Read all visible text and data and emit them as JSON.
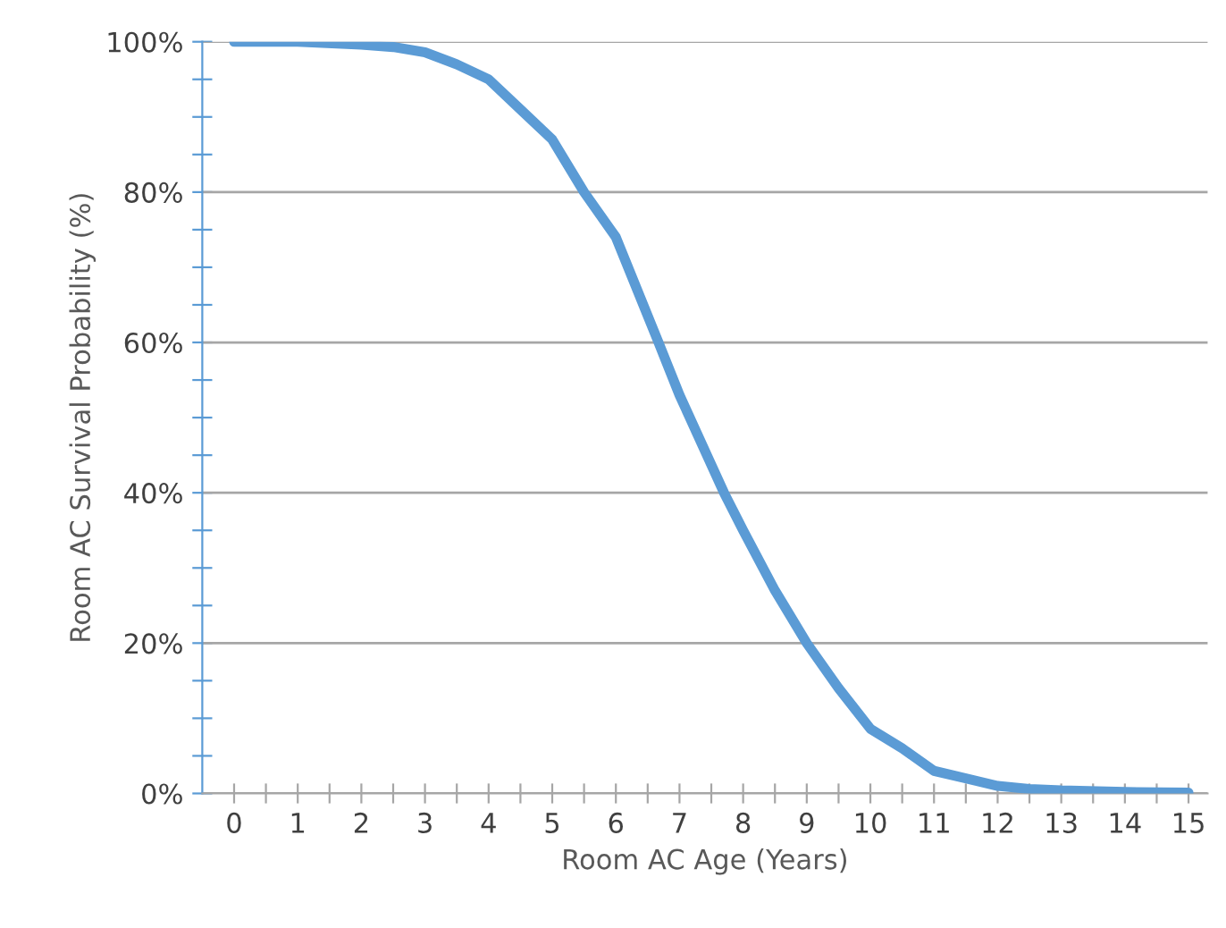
{
  "chart_data": {
    "type": "line",
    "xlabel": "Room AC Age (Years)",
    "ylabel": "Room AC Survival Probability (%)",
    "series": [
      {
        "color": "#5b9bd5",
        "x": [
          0,
          1,
          2,
          2.5,
          3,
          3.5,
          4,
          4.5,
          5,
          5.5,
          6,
          6.67,
          7,
          7.7,
          8,
          8.5,
          9,
          9.5,
          10,
          10.5,
          11,
          11.5,
          12,
          12.5,
          13,
          14,
          15
        ],
        "values": [
          100,
          100,
          99.6,
          99.3,
          98.6,
          97,
          95,
          91,
          87,
          80,
          74,
          60,
          53,
          40,
          35,
          27,
          20,
          14,
          8.6,
          6,
          3,
          2,
          1,
          0.6,
          0.4,
          0.2,
          0.1
        ]
      }
    ],
    "xlim": [
      -0.5,
      15.3
    ],
    "ylim": [
      0,
      100
    ],
    "xticks": [
      0,
      {
        "value": 0.5,
        "label": null
      },
      1,
      {
        "value": 1.5,
        "label": null
      },
      2,
      {
        "value": 2.5,
        "label": null
      },
      3,
      {
        "value": 3.5,
        "label": null
      },
      4,
      {
        "value": 4.5,
        "label": null
      },
      5,
      {
        "value": 5.5,
        "label": null
      },
      6,
      {
        "value": 6.5,
        "label": null
      },
      7,
      {
        "value": 7.5,
        "label": null
      },
      8,
      {
        "value": 8.5,
        "label": null
      },
      9,
      {
        "value": 9.5,
        "label": null
      },
      10,
      {
        "value": 10.5,
        "label": null
      },
      11,
      {
        "value": 11.5,
        "label": null
      },
      12,
      {
        "value": 12.5,
        "label": null
      },
      13,
      {
        "value": 13.5,
        "label": null
      },
      14,
      {
        "value": 14.5,
        "label": null
      },
      15
    ],
    "yticks": [
      {
        "value": 0,
        "label": "0%"
      },
      {
        "value": 5,
        "label": null
      },
      {
        "value": 10,
        "label": null
      },
      {
        "value": 15,
        "label": null
      },
      {
        "value": 20,
        "label": "20%"
      },
      {
        "value": 25,
        "label": null
      },
      {
        "value": 30,
        "label": null
      },
      {
        "value": 35,
        "label": null
      },
      {
        "value": 40,
        "label": "40%"
      },
      {
        "value": 45,
        "label": null
      },
      {
        "value": 50,
        "label": null
      },
      {
        "value": 55,
        "label": null
      },
      {
        "value": 60,
        "label": "60%"
      },
      {
        "value": 65,
        "label": null
      },
      {
        "value": 70,
        "label": null
      },
      {
        "value": 75,
        "label": null
      },
      {
        "value": 80,
        "label": "80%"
      },
      {
        "value": 85,
        "label": null
      },
      {
        "value": 90,
        "label": null
      },
      {
        "value": 95,
        "label": null
      },
      {
        "value": 100,
        "label": "100%"
      }
    ],
    "grid": "y",
    "marker": "none",
    "line_style": "solid",
    "legend": false
  }
}
